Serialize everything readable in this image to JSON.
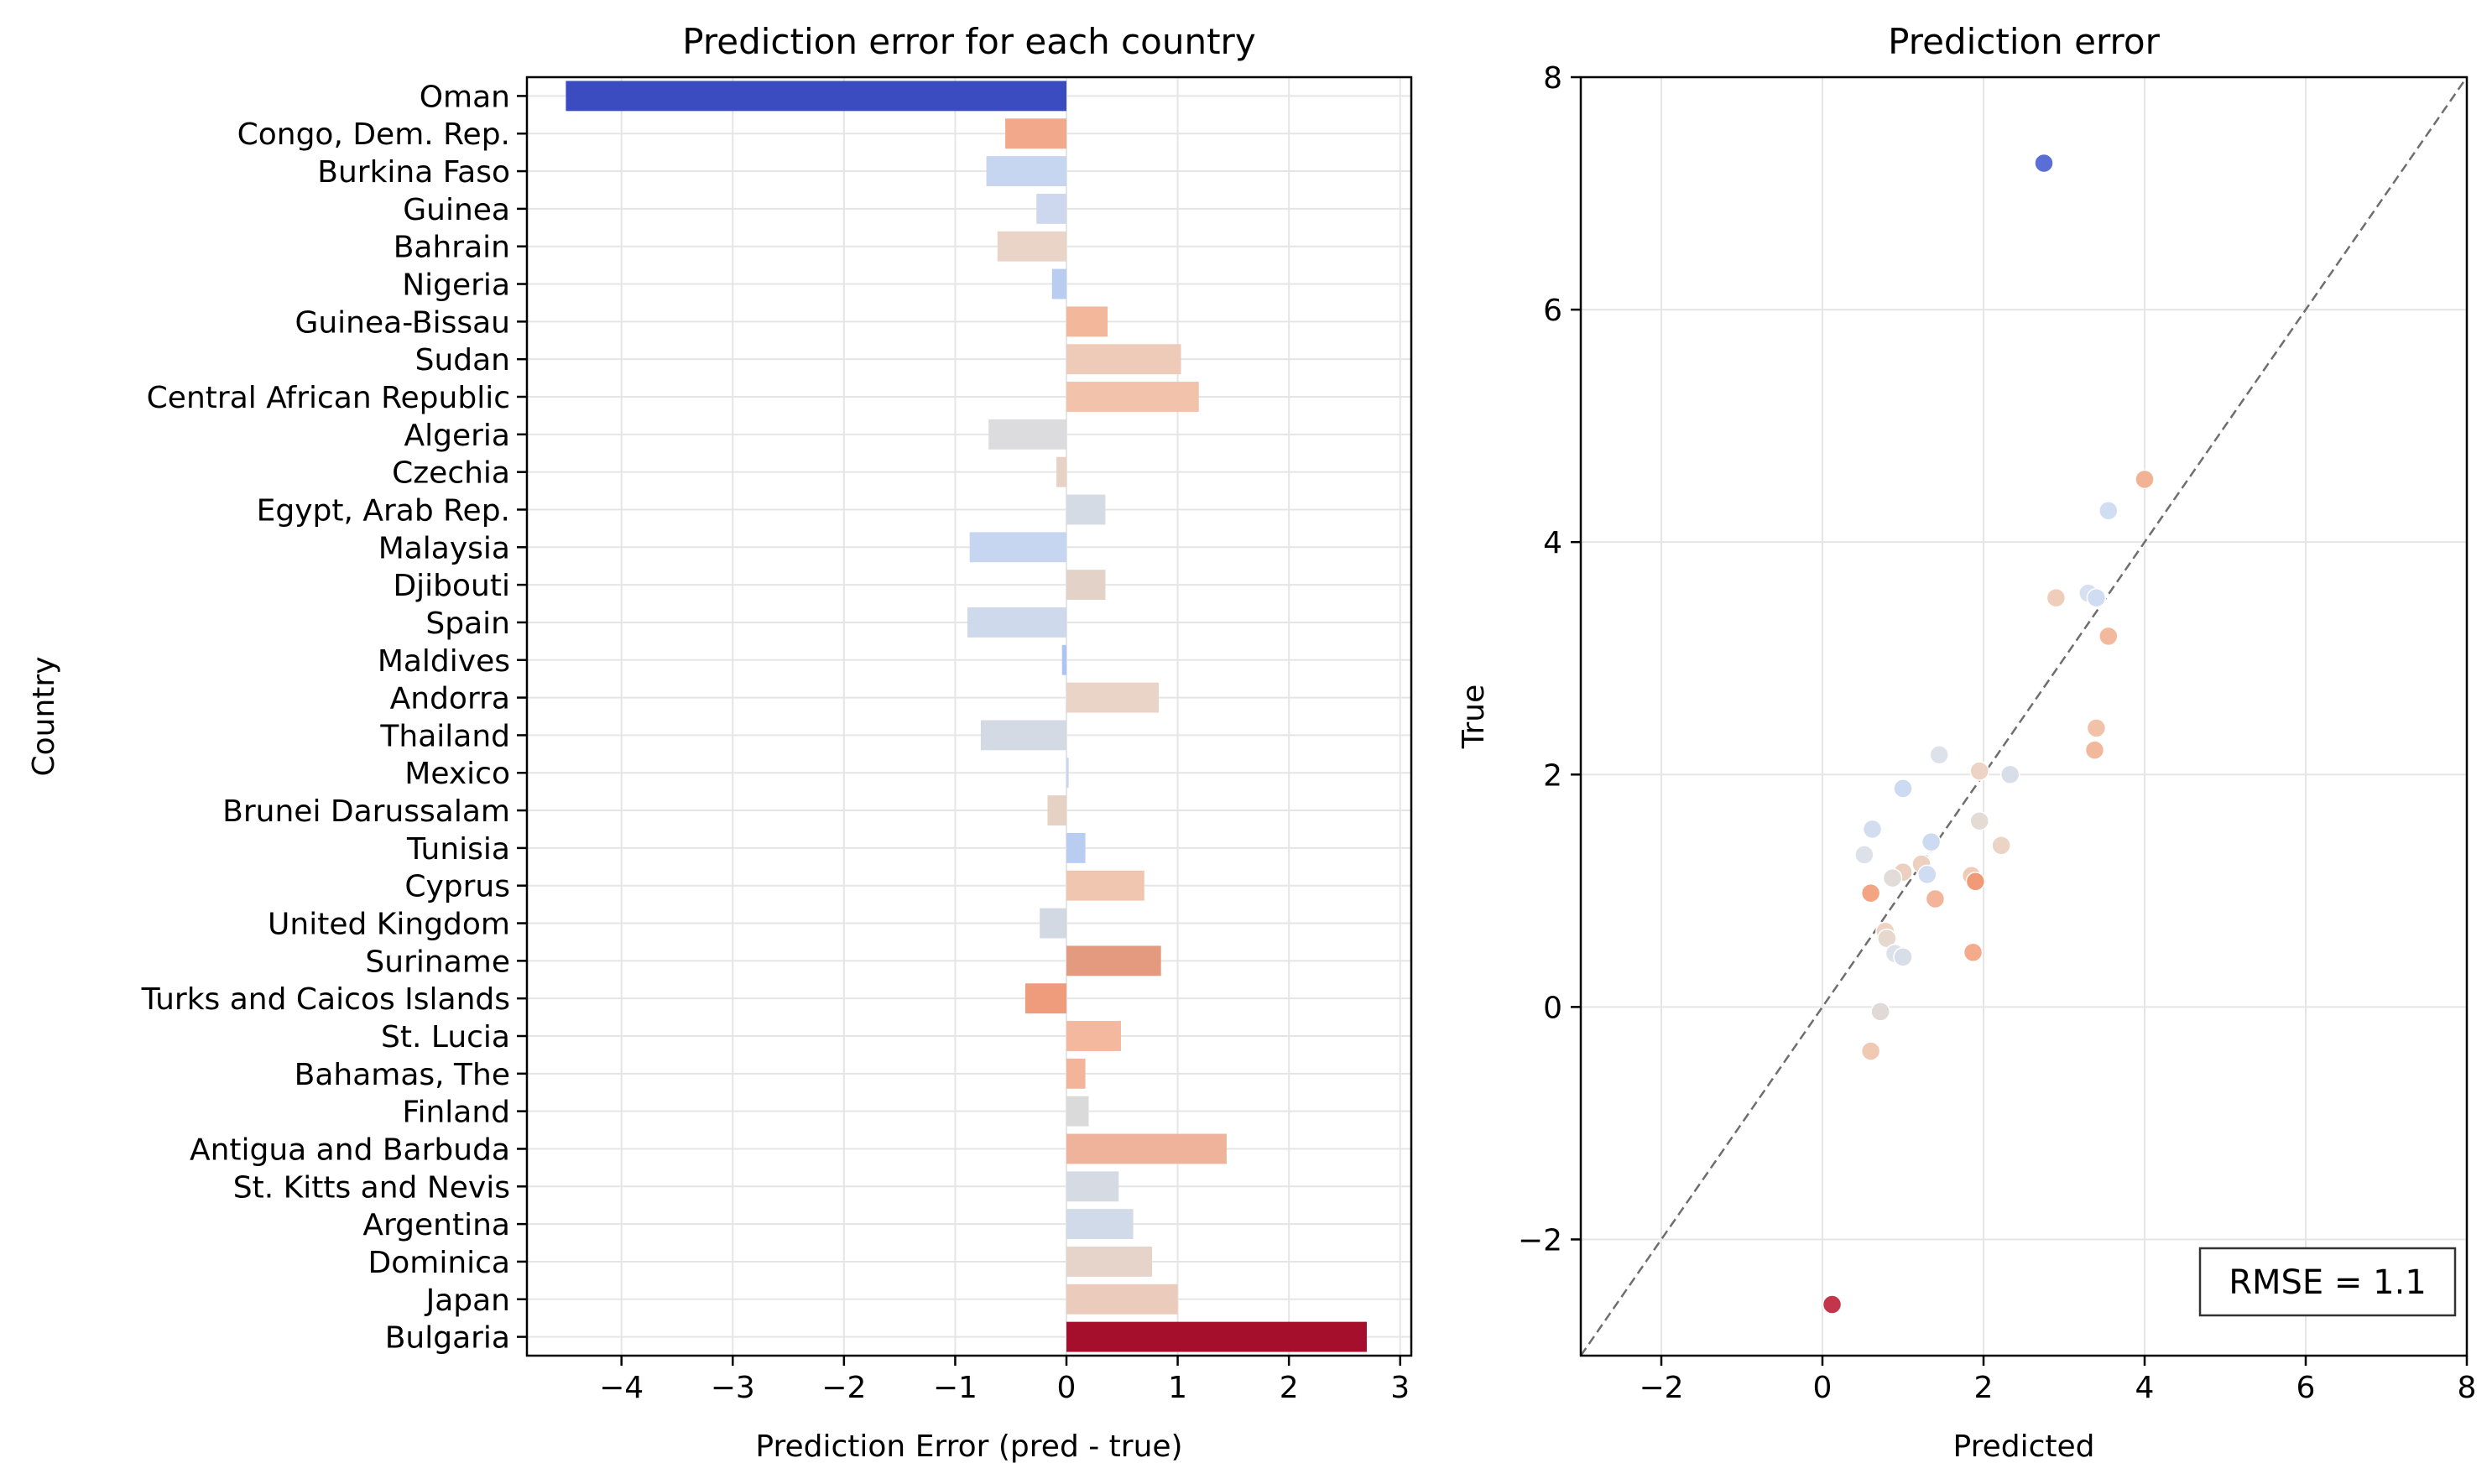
{
  "figure": {
    "axis_text_color": "#000000",
    "grid_color": "#e5e5e5"
  },
  "chart_data": [
    {
      "type": "bar",
      "orientation": "horizontal",
      "title": "Prediction error for each country",
      "xlabel": "Prediction Error (pred - true)",
      "ylabel": "Country",
      "xlim": [
        -4.85,
        3.1
      ],
      "xticks": [
        -4,
        -3,
        -2,
        -1,
        0,
        1,
        2,
        3
      ],
      "xtick_labels": [
        "−4",
        "−3",
        "−2",
        "−1",
        "0",
        "1",
        "2",
        "3"
      ],
      "grid": true,
      "colormap": "coolwarm",
      "categories": [
        "Oman",
        "Congo, Dem. Rep.",
        "Burkina Faso",
        "Guinea",
        "Bahrain",
        "Nigeria",
        "Guinea-Bissau",
        "Sudan",
        "Central African Republic",
        "Algeria",
        "Czechia",
        "Egypt, Arab Rep.",
        "Malaysia",
        "Djibouti",
        "Spain",
        "Maldives",
        "Andorra",
        "Thailand",
        "Mexico",
        "Brunei Darussalam",
        "Tunisia",
        "Cyprus",
        "United Kingdom",
        "Suriname",
        "Turks and Caicos Islands",
        "St. Lucia",
        "Bahamas, The",
        "Finland",
        "Antigua and Barbuda",
        "St. Kitts and Nevis",
        "Argentina",
        "Dominica",
        "Japan",
        "Bulgaria"
      ],
      "values": [
        -4.5,
        -0.55,
        -0.72,
        -0.27,
        -0.62,
        -0.13,
        0.37,
        1.03,
        1.19,
        -0.7,
        -0.09,
        0.35,
        -0.87,
        0.35,
        -0.89,
        -0.04,
        0.83,
        -0.77,
        0.02,
        -0.17,
        0.17,
        0.7,
        -0.24,
        0.85,
        -0.37,
        0.49,
        0.17,
        0.2,
        1.44,
        0.47,
        0.6,
        0.77,
        1.0,
        2.7
      ],
      "colors": [
        "#3b4cc0",
        "#f2a88a",
        "#c7d6f0",
        "#cdd8ee",
        "#ead4c8",
        "#b9cdf3",
        "#f3b79c",
        "#eecbb9",
        "#f2c2ab",
        "#dcdcde",
        "#e8d2c6",
        "#d5dbe5",
        "#c6d6f1",
        "#e3d2c8",
        "#cfd9ec",
        "#aec4f6",
        "#e9d4c7",
        "#d4dae4",
        "#c8d7f0",
        "#e6d1c5",
        "#b9cdf3",
        "#f0c6b1",
        "#d3d9e3",
        "#e39a7e",
        "#ef9c7c",
        "#f4b89e",
        "#f2b59a",
        "#dadadb",
        "#eeb39a",
        "#d6dbe3",
        "#d0dae8",
        "#e6d3c9",
        "#ebcbbb",
        "#a50f2c"
      ]
    },
    {
      "type": "scatter",
      "title": "Prediction error",
      "xlabel": "Predicted",
      "ylabel": "True",
      "xlim": [
        -3,
        8
      ],
      "ylim": [
        -3,
        8
      ],
      "xticks": [
        -2,
        0,
        2,
        4,
        6,
        8
      ],
      "yticks": [
        -2,
        0,
        2,
        4,
        6,
        8
      ],
      "xtick_labels": [
        "−2",
        "0",
        "2",
        "4",
        "6",
        "8"
      ],
      "ytick_labels": [
        "−2",
        "0",
        "2",
        "4",
        "6",
        "8"
      ],
      "grid": true,
      "identity_line": true,
      "identity_line_color": "#6e6e6e",
      "annotation": "RMSE = 1.1",
      "annotation_placement": "bottom-right",
      "points": [
        {
          "x": 2.75,
          "y": 7.26,
          "color": "#5a6fd6"
        },
        {
          "x": 0.12,
          "y": -2.56,
          "color": "#c3354a"
        },
        {
          "x": 4.0,
          "y": 4.54,
          "color": "#f2b394"
        },
        {
          "x": 3.55,
          "y": 4.27,
          "color": "#d0ddf2"
        },
        {
          "x": 3.3,
          "y": 3.56,
          "color": "#d6e0f0"
        },
        {
          "x": 3.4,
          "y": 3.52,
          "color": "#cfdcf2"
        },
        {
          "x": 2.9,
          "y": 3.52,
          "color": "#efcdba"
        },
        {
          "x": 3.55,
          "y": 3.19,
          "color": "#f3b99d"
        },
        {
          "x": 3.4,
          "y": 2.4,
          "color": "#f2c2a8"
        },
        {
          "x": 3.38,
          "y": 2.21,
          "color": "#f2b89c"
        },
        {
          "x": 1.45,
          "y": 2.17,
          "color": "#dde2ea"
        },
        {
          "x": 1.95,
          "y": 2.03,
          "color": "#ecd3c4"
        },
        {
          "x": 2.33,
          "y": 2.0,
          "color": "#d8dee8"
        },
        {
          "x": 1.0,
          "y": 1.88,
          "color": "#cddbf2"
        },
        {
          "x": 1.95,
          "y": 1.6,
          "color": "#e4dbd5"
        },
        {
          "x": 0.62,
          "y": 1.53,
          "color": "#d2ddf0"
        },
        {
          "x": 1.35,
          "y": 1.42,
          "color": "#cddbf2"
        },
        {
          "x": 2.22,
          "y": 1.39,
          "color": "#ebd4c6"
        },
        {
          "x": 0.52,
          "y": 1.31,
          "color": "#dde2ea"
        },
        {
          "x": 1.23,
          "y": 1.23,
          "color": "#ecd0c0"
        },
        {
          "x": 1.0,
          "y": 1.16,
          "color": "#eccfbe"
        },
        {
          "x": 1.3,
          "y": 1.14,
          "color": "#cfdcf2"
        },
        {
          "x": 1.85,
          "y": 1.13,
          "color": "#efcbb8"
        },
        {
          "x": 0.87,
          "y": 1.11,
          "color": "#e2dcd8"
        },
        {
          "x": 1.9,
          "y": 1.08,
          "color": "#f09a78"
        },
        {
          "x": 0.6,
          "y": 0.98,
          "color": "#f3a583"
        },
        {
          "x": 1.4,
          "y": 0.93,
          "color": "#f2b599"
        },
        {
          "x": 0.78,
          "y": 0.65,
          "color": "#ecd3c4"
        },
        {
          "x": 0.8,
          "y": 0.59,
          "color": "#e6d8cc"
        },
        {
          "x": 0.9,
          "y": 0.46,
          "color": "#dde2ea"
        },
        {
          "x": 1.0,
          "y": 0.43,
          "color": "#d8dee8"
        },
        {
          "x": 1.87,
          "y": 0.47,
          "color": "#f3ab8b"
        },
        {
          "x": 0.72,
          "y": -0.04,
          "color": "#e0d9d5"
        },
        {
          "x": 0.6,
          "y": -0.38,
          "color": "#f0c9b4"
        }
      ]
    }
  ]
}
